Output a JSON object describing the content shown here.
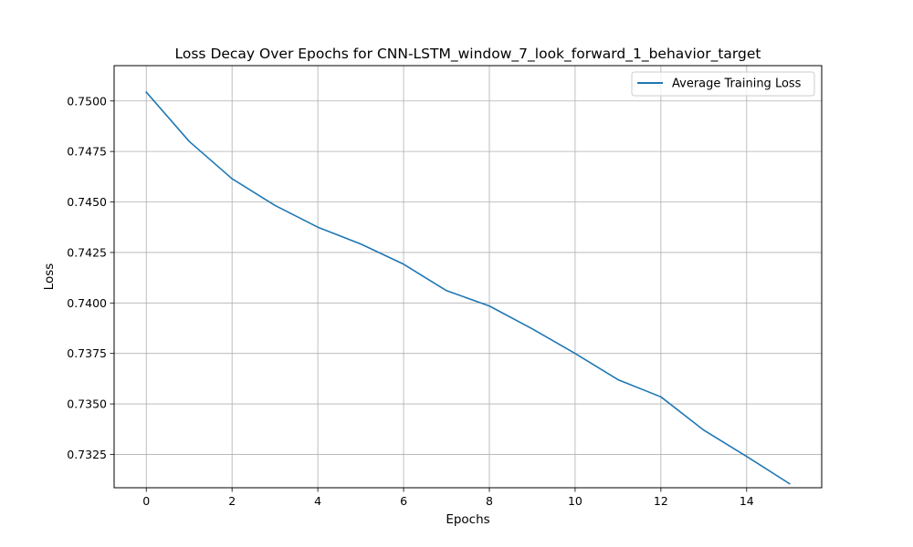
{
  "chart_data": {
    "type": "line",
    "title": "Loss Decay Over Epochs for CNN-LSTM_window_7_look_forward_1_behavior_target",
    "xlabel": "Epochs",
    "ylabel": "Loss",
    "x": [
      0,
      1,
      2,
      3,
      4,
      5,
      6,
      7,
      8,
      9,
      10,
      11,
      12,
      13,
      14,
      15
    ],
    "series": [
      {
        "name": "Average Training Loss",
        "color": "#1f77b4",
        "values": [
          0.75044,
          0.748,
          0.74615,
          0.74483,
          0.74375,
          0.74292,
          0.74192,
          0.74061,
          0.73985,
          0.73872,
          0.7375,
          0.7362,
          0.73535,
          0.7337,
          0.7324,
          0.73105
        ]
      }
    ],
    "xlim": [
      -0.75,
      15.75
    ],
    "ylim": [
      0.73085,
      0.75175
    ],
    "xticks": [
      0,
      2,
      4,
      6,
      8,
      10,
      12,
      14
    ],
    "xtick_labels": [
      "0",
      "2",
      "4",
      "6",
      "8",
      "10",
      "12",
      "14"
    ],
    "yticks": [
      0.7325,
      0.735,
      0.7375,
      0.74,
      0.7425,
      0.745,
      0.7475,
      0.75
    ],
    "ytick_labels": [
      "0.7325",
      "0.7350",
      "0.7375",
      "0.7400",
      "0.7425",
      "0.7450",
      "0.7475",
      "0.7500"
    ],
    "grid": true,
    "legend_position": "top-right",
    "grid_color": "#b0b0b0"
  }
}
